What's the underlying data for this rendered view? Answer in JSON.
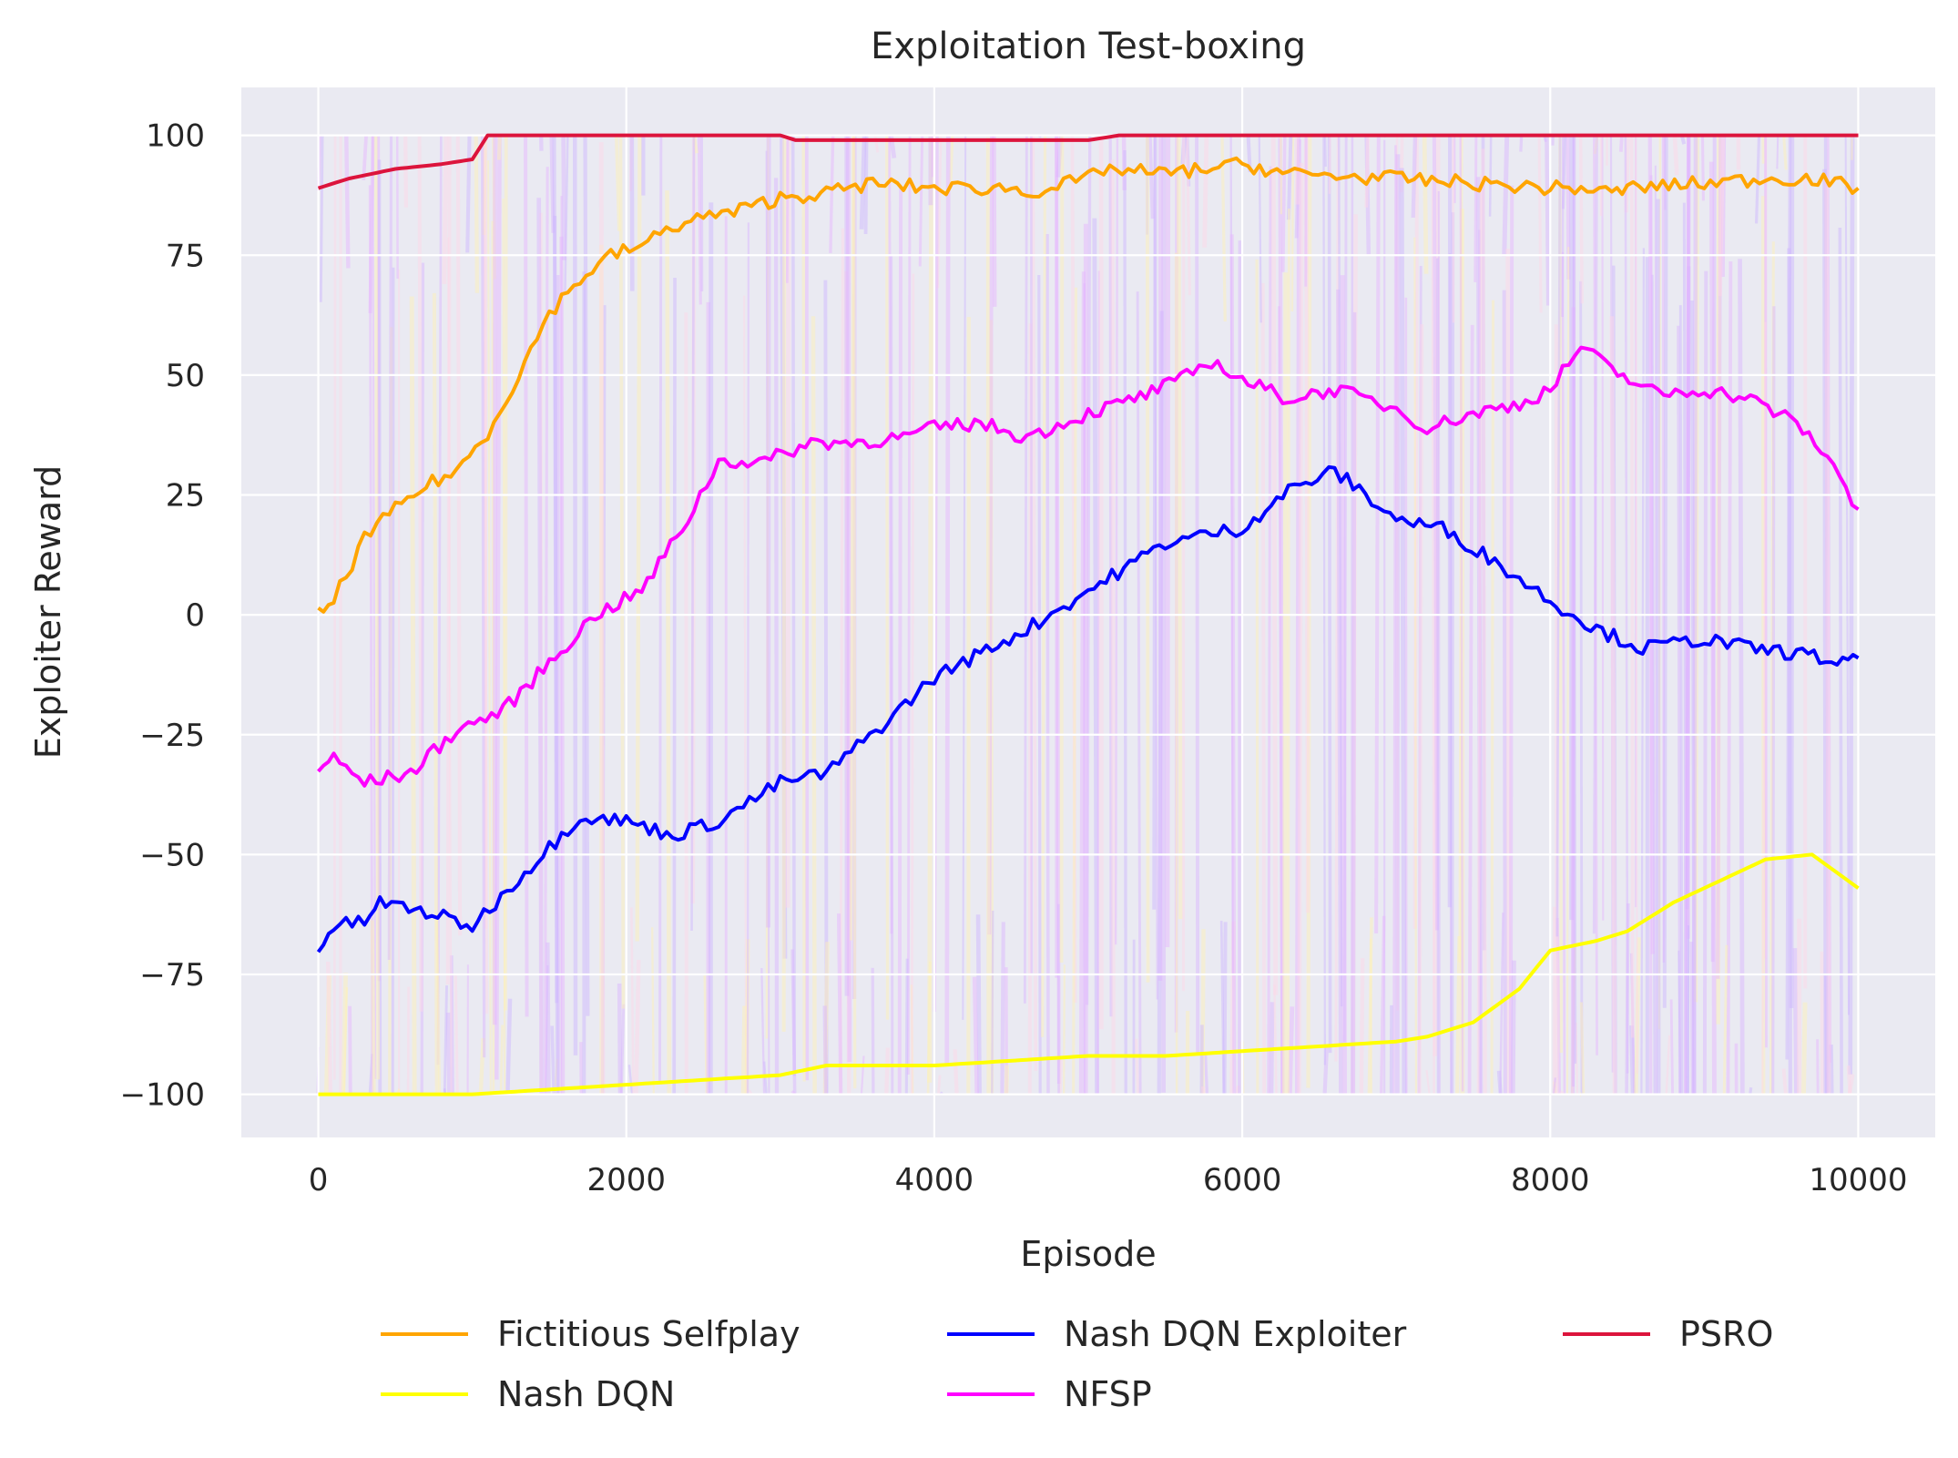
{
  "chart_data": {
    "type": "line",
    "title": "Exploitation Test-boxing",
    "xlabel": "Episode",
    "ylabel": "Exploiter Reward",
    "xlim": [
      -500,
      10500
    ],
    "ylim": [
      -109,
      110
    ],
    "xticks": [
      0,
      2000,
      4000,
      6000,
      8000,
      10000
    ],
    "xtick_labels": [
      "0",
      "2000",
      "4000",
      "6000",
      "8000",
      "10000"
    ],
    "yticks": [
      -100,
      -75,
      -50,
      -25,
      0,
      25,
      50,
      75,
      100
    ],
    "ytick_labels": [
      "−100",
      "−75",
      "−50",
      "−25",
      "0",
      "25",
      "50",
      "75",
      "100"
    ],
    "grid": true,
    "legend_position": "bottom",
    "style": {
      "background": "#eaeaf2",
      "grid_color": "#ffffff"
    },
    "series": [
      {
        "name": "Fictitious Selfplay",
        "color": "#ffa500",
        "x": [
          0,
          100,
          300,
          500,
          700,
          900,
          1100,
          1300,
          1500,
          1700,
          1900,
          2100,
          2300,
          2500,
          2700,
          3000,
          3300,
          3600,
          4000,
          4500,
          4600,
          5000,
          5100,
          5500,
          6000,
          6300,
          7000,
          7500,
          8000,
          8200,
          8400,
          8500,
          9000,
          9400,
          9700,
          10000
        ],
        "y": [
          0,
          3,
          16,
          22,
          27,
          30,
          38,
          50,
          63,
          70,
          75,
          77,
          81,
          83,
          84,
          87,
          88,
          90,
          89,
          89,
          88,
          91,
          93,
          92,
          94,
          92,
          91,
          90,
          89,
          89,
          88,
          89,
          90,
          91,
          91,
          89
        ]
      },
      {
        "name": "Nash DQN",
        "color": "#ffff00",
        "x": [
          0,
          1000,
          2000,
          3000,
          3300,
          4000,
          5000,
          5500,
          6000,
          6500,
          7000,
          7200,
          7500,
          7800,
          8000,
          8300,
          8500,
          8800,
          9000,
          9400,
          9700,
          10000
        ],
        "y": [
          -100,
          -100,
          -98,
          -96,
          -94,
          -94,
          -92,
          -92,
          -91,
          -90,
          -89,
          -88,
          -85,
          -78,
          -70,
          -68,
          -66,
          -60,
          -57,
          -51,
          -50,
          -57
        ]
      },
      {
        "name": "Nash DQN Exploiter",
        "color": "#0000ff",
        "x": [
          0,
          100,
          300,
          400,
          700,
          1000,
          1300,
          1700,
          2000,
          2300,
          2600,
          3000,
          3300,
          3700,
          4000,
          4300,
          4600,
          5000,
          5500,
          5800,
          6000,
          6300,
          6600,
          7000,
          7300,
          7600,
          8000,
          8300,
          8600,
          9000,
          9300,
          9600,
          9900,
          10000
        ],
        "y": [
          -70,
          -65,
          -64,
          -60,
          -62,
          -65,
          -55,
          -42,
          -43,
          -46,
          -43,
          -35,
          -33,
          -22,
          -13,
          -8,
          -3,
          5,
          15,
          17,
          18,
          26,
          30,
          20,
          18,
          12,
          3,
          -3,
          -7,
          -5,
          -7,
          -8,
          -10,
          -9
        ]
      },
      {
        "name": "NFSP",
        "color": "#ff00ff",
        "x": [
          0,
          100,
          300,
          600,
          900,
          1200,
          1500,
          1800,
          2100,
          2400,
          2600,
          2900,
          3200,
          3500,
          3800,
          4000,
          4300,
          4600,
          5000,
          5300,
          5600,
          5800,
          6000,
          6300,
          6600,
          7000,
          7200,
          7500,
          7800,
          8000,
          8200,
          8400,
          8700,
          9000,
          9300,
          9600,
          9800,
          10000
        ],
        "y": [
          -32,
          -30,
          -35,
          -33,
          -24,
          -20,
          -10,
          0,
          5,
          20,
          32,
          32,
          36,
          36,
          37,
          39,
          40,
          37,
          42,
          45,
          49,
          53,
          49,
          45,
          47,
          43,
          39,
          42,
          44,
          47,
          56,
          51,
          46,
          47,
          45,
          40,
          33,
          22
        ]
      },
      {
        "name": "PSRO",
        "color": "#dc143c",
        "x": [
          0,
          200,
          500,
          800,
          1000,
          1100,
          1500,
          2000,
          3000,
          3100,
          4000,
          5000,
          5200,
          6000,
          7000,
          8000,
          9000,
          10000
        ],
        "y": [
          89,
          91,
          93,
          94,
          95,
          100,
          100,
          100,
          100,
          99,
          99,
          99,
          100,
          100,
          100,
          100,
          100,
          100
        ]
      }
    ],
    "legend": {
      "columns": [
        [
          "Fictitious Selfplay",
          "Nash DQN"
        ],
        [
          "Nash DQN Exploiter",
          "NFSP"
        ],
        [
          "PSRO"
        ]
      ]
    }
  }
}
